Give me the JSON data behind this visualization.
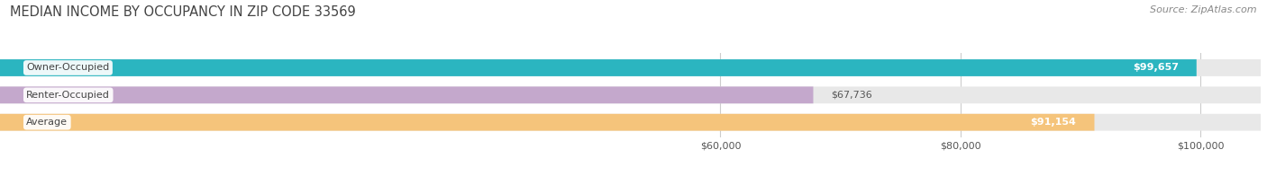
{
  "title": "MEDIAN INCOME BY OCCUPANCY IN ZIP CODE 33569",
  "source": "Source: ZipAtlas.com",
  "categories": [
    "Owner-Occupied",
    "Renter-Occupied",
    "Average"
  ],
  "values": [
    99657,
    67736,
    91154
  ],
  "bar_colors": [
    "#2bb5c0",
    "#c4a8cc",
    "#f5c47b"
  ],
  "value_labels": [
    "$99,657",
    "$67,736",
    "$91,154"
  ],
  "xmin": 0,
  "xmax": 105000,
  "xticks": [
    60000,
    80000,
    100000
  ],
  "xticklabels": [
    "$60,000",
    "$80,000",
    "$100,000"
  ],
  "background_color": "#ffffff",
  "bar_bg_color": "#e8e8e8",
  "title_fontsize": 10.5,
  "source_fontsize": 8,
  "bar_height": 0.62,
  "bar_gap": 0.38,
  "figsize": [
    14.06,
    1.96
  ],
  "dpi": 100
}
